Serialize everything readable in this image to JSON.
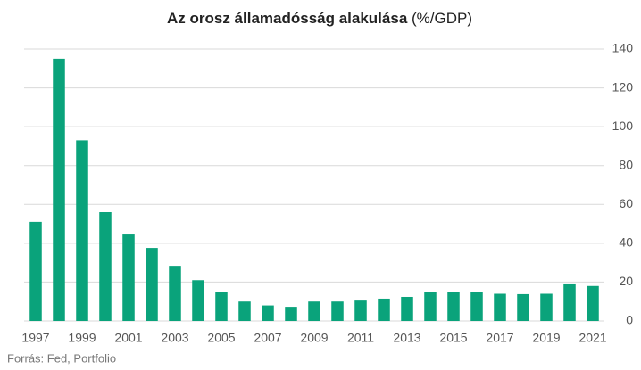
{
  "chart_data": {
    "type": "bar",
    "title": "Az orosz államadósság alakulása",
    "title_unit": "(%/GDP)",
    "source": "Forrás: Fed, Portfolio",
    "categories": [
      "1997",
      null,
      "1999",
      null,
      "2001",
      null,
      "2003",
      null,
      "2005",
      null,
      "2007",
      null,
      "2009",
      null,
      "2011",
      null,
      "2013",
      null,
      "2015",
      null,
      "2017",
      null,
      "2019",
      null,
      "2021"
    ],
    "values": [
      51,
      135,
      93,
      56,
      44.5,
      37.6,
      28.4,
      21,
      15,
      10,
      8,
      7.3,
      10,
      10,
      10.5,
      11.5,
      12.4,
      15,
      15,
      15,
      14,
      13.8,
      14,
      19.3,
      18
    ],
    "color": "#0aa37b",
    "ylim": [
      0,
      140
    ],
    "yticks": [
      0,
      20,
      40,
      60,
      80,
      100,
      120,
      140
    ],
    "grid": true,
    "y_axis_side": "right"
  }
}
